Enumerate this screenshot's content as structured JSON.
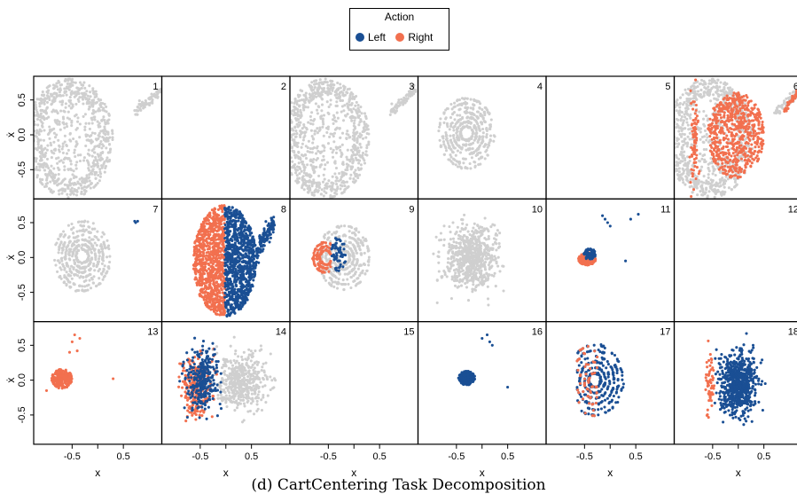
{
  "chart_data": {
    "type": "scatter",
    "layout": "3x6 facet grid",
    "legend": {
      "title": "Action",
      "placement": "top-center",
      "entries": [
        {
          "name": "Left",
          "color": "#1a4f94"
        },
        {
          "name": "Right",
          "color": "#f2704f"
        }
      ]
    },
    "colors": {
      "left": "#1a4f94",
      "right": "#f2704f",
      "inactive": "#cfcfcf"
    },
    "xlabel": "x",
    "ylabel": "ẋ",
    "xlim": [
      -1.25,
      1.25
    ],
    "ylim": [
      -0.92,
      0.84
    ],
    "xticks": [
      -0.5,
      0,
      0.5
    ],
    "xtick_labels": [
      "-0.5",
      "",
      "0.5"
    ],
    "yticks": [
      0.5,
      0.0,
      -0.5
    ],
    "ytick_labels": [
      "0.5",
      "0.0",
      "-0.5"
    ],
    "grid": false,
    "panels": [
      {
        "label": "1",
        "pattern": "full-ellipse",
        "color": "inactive"
      },
      {
        "label": "2",
        "pattern": "empty"
      },
      {
        "label": "3",
        "pattern": "full-ellipse",
        "color": "inactive"
      },
      {
        "label": "4",
        "pattern": "rings",
        "color": "inactive"
      },
      {
        "label": "5",
        "pattern": "empty"
      },
      {
        "label": "6",
        "pattern": "ellipse-overlay",
        "base": "inactive",
        "overlay": "right"
      },
      {
        "label": "7",
        "pattern": "rings",
        "color": "inactive"
      },
      {
        "label": "8",
        "pattern": "split",
        "left_half": "right",
        "right_half": "left"
      },
      {
        "label": "9",
        "pattern": "rings-mixed",
        "base": "inactive"
      },
      {
        "label": "10",
        "pattern": "cloud",
        "color": "inactive"
      },
      {
        "label": "11",
        "pattern": "cluster",
        "color": "mixed"
      },
      {
        "label": "12",
        "pattern": "empty"
      },
      {
        "label": "13",
        "pattern": "cluster",
        "color": "right"
      },
      {
        "label": "14",
        "pattern": "cloud-mixed",
        "base": "inactive"
      },
      {
        "label": "15",
        "pattern": "empty"
      },
      {
        "label": "16",
        "pattern": "cluster",
        "color": "left"
      },
      {
        "label": "17",
        "pattern": "rings-bicolor"
      },
      {
        "label": "18",
        "pattern": "cloud",
        "color": "left-with-right"
      }
    ]
  },
  "caption": "(d) CartCentering Task Decomposition"
}
